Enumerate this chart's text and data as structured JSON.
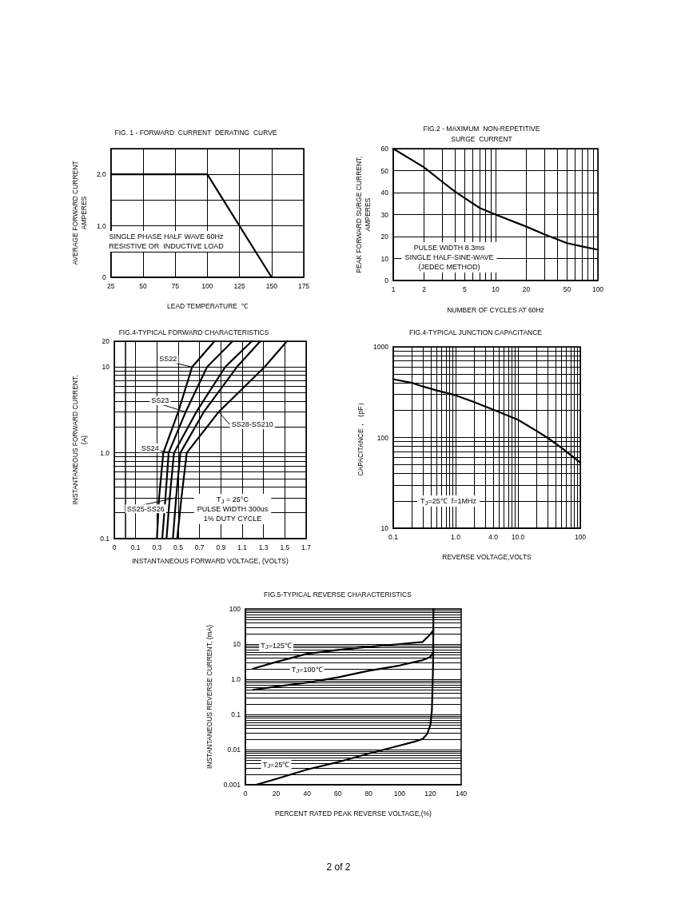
{
  "chart_data": [
    {
      "type": "line",
      "title": "FIG. 1 - FORWARD  CURRENT  DERATING  CURVE",
      "xlabel": "LEAD TEMPERATURE  ℃",
      "ylabel": "AVERAGE FORWARD CURRENT\nAMPERES",
      "x": [
        25,
        100,
        150
      ],
      "values": [
        2.0,
        2.0,
        0
      ],
      "color": "#000000",
      "xlim": [
        25,
        175
      ],
      "xticks": [
        25,
        50,
        75,
        100,
        125,
        150,
        175
      ],
      "ylim": [
        0,
        2.5
      ],
      "yticks": [
        0,
        {
          "value": 0.5,
          "label": null
        },
        {
          "value": 1,
          "label": "1.0"
        },
        {
          "value": 1.5,
          "label": null
        },
        {
          "value": 2,
          "label": "2.0"
        },
        {
          "value": 2.5,
          "label": null
        }
      ],
      "grid": true,
      "marker": "none",
      "line_style": "solid",
      "annotations": [
        "SINGLE PHASE HALF WAVE 60Hz\nRESISTIVE OR  INDUCTIVE LOAD"
      ]
    },
    {
      "type": "line",
      "title": "FIG.2 - MAXIMUM  NON-REPETITIVE\nSURGE  CURRENT",
      "xlabel": "NUMBER OF CYCLES AT 60Hz",
      "ylabel": "PEAK FORWARD SURGE CURRENT,\nAMPERES",
      "x": [
        1,
        2,
        3,
        4,
        5,
        7,
        10,
        20,
        30,
        50,
        70,
        100
      ],
      "values": [
        60,
        51.5,
        45,
        40.5,
        37.5,
        33,
        30,
        24.5,
        21,
        17,
        15.5,
        14
      ],
      "color": "#000000",
      "xlim": [
        1,
        100
      ],
      "xticks": [
        1,
        2,
        {
          "value": 3,
          "label": null
        },
        {
          "value": 4,
          "label": null
        },
        5,
        {
          "value": 6,
          "label": null
        },
        {
          "value": 7,
          "label": null
        },
        {
          "value": 8,
          "label": null
        },
        {
          "value": 9,
          "label": null
        },
        10,
        20,
        {
          "value": 30,
          "label": null
        },
        {
          "value": 40,
          "label": null
        },
        50,
        {
          "value": 60,
          "label": null
        },
        {
          "value": 70,
          "label": null
        },
        {
          "value": 80,
          "label": null
        },
        {
          "value": 90,
          "label": null
        },
        100
      ],
      "ylim": [
        0,
        60
      ],
      "yticks": [
        0,
        10,
        20,
        30,
        40,
        50,
        60
      ],
      "log": "x",
      "grid": true,
      "marker": "none",
      "line_style": "solid",
      "annotations": [
        "PULSE WIDTH 8.3ms\nSINGLE HALF-SINE-WAVE\n(JEDEC METHOD)"
      ]
    },
    {
      "type": "line",
      "title": "FIG.4-TYPICAL FORWARD CHARACTERISTICS",
      "xlabel": "INSTANTANEOUS FORWARD VOLTAGE, (VOLTS)",
      "ylabel": "INSTANTANEOUS FORWARD CURRENT,\n(A)",
      "series": [
        {
          "name": "SS22",
          "color": "#000000",
          "x": [
            0.3,
            0.32,
            0.36,
            0.5,
            0.63,
            0.84
          ],
          "values": [
            0.1,
            0.3,
            1,
            3,
            10,
            20
          ]
        },
        {
          "name": "SS23",
          "color": "#000000",
          "x": [
            0.35,
            0.38,
            0.41,
            0.57,
            0.77,
            1.01
          ],
          "values": [
            0.1,
            0.3,
            1,
            3,
            10,
            20
          ]
        },
        {
          "name": "SS24",
          "color": "#000000",
          "x": [
            0.39,
            0.42,
            0.46,
            0.67,
            0.94,
            1.19
          ],
          "values": [
            0.1,
            0.3,
            1,
            3,
            10,
            20
          ]
        },
        {
          "name": "SS25-SS26",
          "color": "#000000",
          "x": [
            0.45,
            0.48,
            0.52,
            0.74,
            1.05,
            1.27
          ],
          "values": [
            0.1,
            0.3,
            1,
            3,
            10,
            20
          ]
        },
        {
          "name": "SS28-SS210",
          "color": "#000000",
          "x": [
            0.49,
            0.53,
            0.58,
            0.88,
            1.31,
            1.52
          ],
          "values": [
            0.1,
            0.3,
            1,
            3,
            10,
            20
          ]
        }
      ],
      "xlim": [
        -0.1,
        1.7
      ],
      "xticks": [
        {
          "value": -0.1,
          "label": "0"
        },
        0.1,
        0.3,
        0.5,
        0.7,
        0.9,
        1.1,
        1.3,
        1.5,
        1.7
      ],
      "ylim": [
        0.1,
        20
      ],
      "yticks": [
        0.1,
        {
          "value": 0.2,
          "label": null
        },
        {
          "value": 0.3,
          "label": null
        },
        {
          "value": 0.4,
          "label": null
        },
        {
          "value": 0.5,
          "label": null
        },
        {
          "value": 0.6,
          "label": null
        },
        {
          "value": 0.7,
          "label": null
        },
        {
          "value": 0.8,
          "label": null
        },
        {
          "value": 0.9,
          "label": null
        },
        {
          "value": 1,
          "label": "1.0"
        },
        {
          "value": 2,
          "label": null
        },
        {
          "value": 3,
          "label": null
        },
        {
          "value": 4,
          "label": null
        },
        {
          "value": 5,
          "label": null
        },
        {
          "value": 6,
          "label": null
        },
        {
          "value": 7,
          "label": null
        },
        {
          "value": 8,
          "label": null
        },
        {
          "value": 9,
          "label": null
        },
        10,
        20
      ],
      "log": "y",
      "grid": true,
      "marker": "none",
      "line_style": "solid",
      "annotations": [
        "T$_{J}$ = 25°C\nPULSE WIDTH 300us\n1% DUTY CYCLE"
      ]
    },
    {
      "type": "line",
      "title": "FIG.4-TYPICAL JUNCTION CAPACITANCE",
      "xlabel": "REVERSE VOLTAGE,VOLTS",
      "ylabel": "CAPACITANCE，（pF）",
      "x": [
        0.1,
        0.2,
        0.3,
        0.5,
        1,
        2,
        4,
        10,
        20,
        30,
        50,
        100
      ],
      "values": [
        440,
        400,
        365,
        330,
        292,
        245,
        203,
        157,
        118,
        99,
        77,
        53
      ],
      "color": "#000000",
      "xlim": [
        0.1,
        100
      ],
      "xticks": [
        0.1,
        {
          "value": 0.2,
          "label": null
        },
        {
          "value": 0.3,
          "label": null
        },
        {
          "value": 0.4,
          "label": null
        },
        {
          "value": 0.5,
          "label": null
        },
        {
          "value": 0.6,
          "label": null
        },
        {
          "value": 0.7,
          "label": null
        },
        {
          "value": 0.8,
          "label": null
        },
        {
          "value": 0.9,
          "label": null
        },
        {
          "value": 1,
          "label": "1.0"
        },
        {
          "value": 2,
          "label": null
        },
        {
          "value": 3,
          "label": null
        },
        {
          "value": 4,
          "label": "4.0"
        },
        {
          "value": 5,
          "label": null
        },
        {
          "value": 6,
          "label": null
        },
        {
          "value": 7,
          "label": null
        },
        {
          "value": 8,
          "label": null
        },
        {
          "value": 9,
          "label": null
        },
        {
          "value": 10,
          "label": "10.0"
        },
        {
          "value": 20,
          "label": null
        },
        {
          "value": 30,
          "label": null
        },
        {
          "value": 40,
          "label": null
        },
        {
          "value": 50,
          "label": null
        },
        {
          "value": 60,
          "label": null
        },
        {
          "value": 70,
          "label": null
        },
        {
          "value": 80,
          "label": null
        },
        {
          "value": 90,
          "label": null
        },
        100
      ],
      "ylim": [
        10,
        1000
      ],
      "yticks": [
        10,
        {
          "value": 20,
          "label": null
        },
        {
          "value": 30,
          "label": null
        },
        {
          "value": 40,
          "label": null
        },
        {
          "value": 50,
          "label": null
        },
        {
          "value": 60,
          "label": null
        },
        {
          "value": 70,
          "label": null
        },
        {
          "value": 80,
          "label": null
        },
        {
          "value": 90,
          "label": null
        },
        100,
        {
          "value": 200,
          "label": null
        },
        {
          "value": 300,
          "label": null
        },
        {
          "value": 400,
          "label": null
        },
        {
          "value": 500,
          "label": null
        },
        {
          "value": 600,
          "label": null
        },
        {
          "value": 700,
          "label": null
        },
        {
          "value": 800,
          "label": null
        },
        {
          "value": 900,
          "label": null
        },
        1000
      ],
      "log": "xy",
      "grid": true,
      "marker": "none",
      "line_style": "solid",
      "annotations": [
        "T$_{J}$=25℃  f=1MHz"
      ]
    },
    {
      "type": "line",
      "title": "FIG.5-TYPICAL REVERSE CHARACTERISTICS",
      "xlabel": "PERCENT RATED PEAK REVERSE VOLTAGE,(%)",
      "ylabel": "INSTANTANEOUS REVERSE CURRENT, (mA)",
      "series": [
        {
          "name": "T$_{J}$=125℃",
          "color": "#000000",
          "x": [
            5,
            20,
            40,
            60,
            80,
            100,
            115,
            120,
            122
          ],
          "values": [
            2.0,
            3.1,
            5.3,
            6.8,
            8.4,
            10,
            11.5,
            19,
            25
          ]
        },
        {
          "name": "T$_{J}$=100℃",
          "color": "#000000",
          "x": [
            5,
            20,
            40,
            60,
            80,
            100,
            115,
            120,
            122
          ],
          "values": [
            0.5,
            0.62,
            0.8,
            1.13,
            1.74,
            2.46,
            3.5,
            4.3,
            6
          ]
        },
        {
          "name": "T$_{J}$=25℃",
          "color": "#000000",
          "x": [
            7,
            20,
            40,
            60,
            80,
            100,
            110,
            115,
            118,
            120,
            121,
            121.8,
            122
          ],
          "values": [
            0.001,
            0.00146,
            0.0027,
            0.0044,
            0.0077,
            0.013,
            0.017,
            0.02,
            0.028,
            0.05,
            0.13,
            2.9,
            100
          ]
        }
      ],
      "xlim": [
        0,
        140
      ],
      "xticks": [
        0,
        20,
        40,
        60,
        80,
        100,
        120,
        140
      ],
      "ylim": [
        0.001,
        100
      ],
      "yticks": [
        0.001,
        {
          "value": 0.002,
          "label": null
        },
        {
          "value": 0.003,
          "label": null
        },
        {
          "value": 0.004,
          "label": null
        },
        {
          "value": 0.005,
          "label": null
        },
        {
          "value": 0.006,
          "label": null
        },
        {
          "value": 0.007,
          "label": null
        },
        {
          "value": 0.008,
          "label": null
        },
        {
          "value": 0.009,
          "label": null
        },
        0.01,
        {
          "value": 0.02,
          "label": null
        },
        {
          "value": 0.03,
          "label": null
        },
        {
          "value": 0.04,
          "label": null
        },
        {
          "value": 0.05,
          "label": null
        },
        {
          "value": 0.06,
          "label": null
        },
        {
          "value": 0.07,
          "label": null
        },
        {
          "value": 0.08,
          "label": null
        },
        {
          "value": 0.09,
          "label": null
        },
        0.1,
        {
          "value": 0.2,
          "label": null
        },
        {
          "value": 0.3,
          "label": null
        },
        {
          "value": 0.4,
          "label": null
        },
        {
          "value": 0.5,
          "label": null
        },
        {
          "value": 0.6,
          "label": null
        },
        {
          "value": 0.7,
          "label": null
        },
        {
          "value": 0.8,
          "label": null
        },
        {
          "value": 0.9,
          "label": null
        },
        {
          "value": 1,
          "label": "1.0"
        },
        {
          "value": 2,
          "label": null
        },
        {
          "value": 3,
          "label": null
        },
        {
          "value": 4,
          "label": null
        },
        {
          "value": 5,
          "label": null
        },
        {
          "value": 6,
          "label": null
        },
        {
          "value": 7,
          "label": null
        },
        {
          "value": 8,
          "label": null
        },
        {
          "value": 9,
          "label": null
        },
        10,
        {
          "value": 20,
          "label": null
        },
        {
          "value": 30,
          "label": null
        },
        {
          "value": 40,
          "label": null
        },
        {
          "value": 50,
          "label": null
        },
        {
          "value": 60,
          "label": null
        },
        {
          "value": 70,
          "label": null
        },
        {
          "value": 80,
          "label": null
        },
        {
          "value": 90,
          "label": null
        },
        100
      ],
      "log": "y",
      "grid": "y",
      "marker": "none",
      "line_style": "solid",
      "annotations": [
        "2 of 2"
      ]
    }
  ]
}
